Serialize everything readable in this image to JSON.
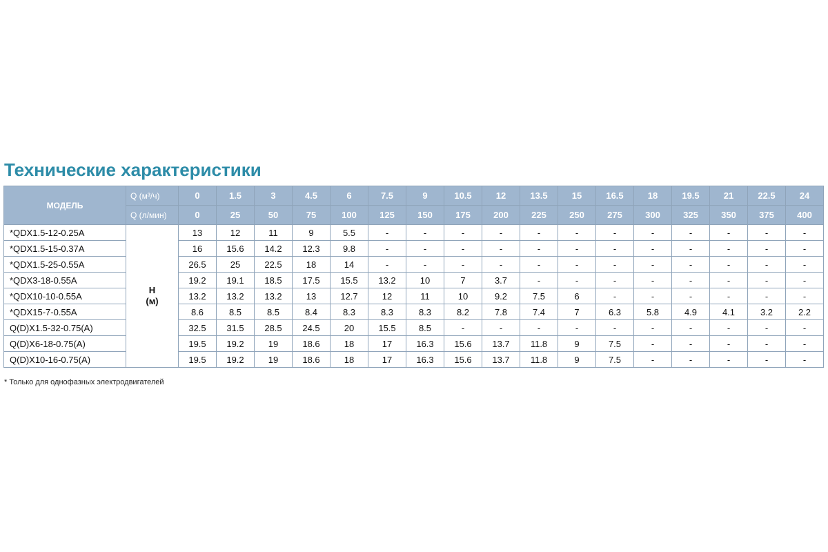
{
  "title": "Технические характеристики",
  "table": {
    "model_header": "МОДЕЛЬ",
    "q_m3_label": "Q (м³/ч)",
    "q_lmin_label": "Q (л/мин)",
    "q_m3_values": [
      "0",
      "1.5",
      "3",
      "4.5",
      "6",
      "7.5",
      "9",
      "10.5",
      "12",
      "13.5",
      "15",
      "16.5",
      "18",
      "19.5",
      "21",
      "22.5",
      "24"
    ],
    "q_lmin_values": [
      "0",
      "25",
      "50",
      "75",
      "100",
      "125",
      "150",
      "175",
      "200",
      "225",
      "250",
      "275",
      "300",
      "325",
      "350",
      "375",
      "400"
    ],
    "h_label_line1": "H",
    "h_label_line2": "(м)",
    "rows": [
      {
        "model": "*QDX1.5-12-0.25A",
        "values": [
          "13",
          "12",
          "11",
          "9",
          "5.5",
          "-",
          "-",
          "-",
          "-",
          "-",
          "-",
          "-",
          "-",
          "-",
          "-",
          "-",
          "-"
        ]
      },
      {
        "model": "*QDX1.5-15-0.37A",
        "values": [
          "16",
          "15.6",
          "14.2",
          "12.3",
          "9.8",
          "-",
          "-",
          "-",
          "-",
          "-",
          "-",
          "-",
          "-",
          "-",
          "-",
          "-",
          "-"
        ]
      },
      {
        "model": "*QDX1.5-25-0.55A",
        "values": [
          "26.5",
          "25",
          "22.5",
          "18",
          "14",
          "-",
          "-",
          "-",
          "-",
          "-",
          "-",
          "-",
          "-",
          "-",
          "-",
          "-",
          "-"
        ]
      },
      {
        "model": "*QDX3-18-0.55A",
        "values": [
          "19.2",
          "19.1",
          "18.5",
          "17.5",
          "15.5",
          "13.2",
          "10",
          "7",
          "3.7",
          "-",
          "-",
          "-",
          "-",
          "-",
          "-",
          "-",
          "-"
        ]
      },
      {
        "model": "*QDX10-10-0.55A",
        "values": [
          "13.2",
          "13.2",
          "13.2",
          "13",
          "12.7",
          "12",
          "11",
          "10",
          "9.2",
          "7.5",
          "6",
          "-",
          "-",
          "-",
          "-",
          "-",
          "-"
        ]
      },
      {
        "model": "*QDX15-7-0.55A",
        "values": [
          "8.6",
          "8.5",
          "8.5",
          "8.4",
          "8.3",
          "8.3",
          "8.3",
          "8.2",
          "7.8",
          "7.4",
          "7",
          "6.3",
          "5.8",
          "4.9",
          "4.1",
          "3.2",
          "2.2"
        ]
      },
      {
        "model": "Q(D)X1.5-32-0.75(A)",
        "values": [
          "32.5",
          "31.5",
          "28.5",
          "24.5",
          "20",
          "15.5",
          "8.5",
          "-",
          "-",
          "-",
          "-",
          "-",
          "-",
          "-",
          "-",
          "-",
          "-"
        ]
      },
      {
        "model": "Q(D)X6-18-0.75(A)",
        "values": [
          "19.5",
          "19.2",
          "19",
          "18.6",
          "18",
          "17",
          "16.3",
          "15.6",
          "13.7",
          "11.8",
          "9",
          "7.5",
          "-",
          "-",
          "-",
          "-",
          "-"
        ]
      },
      {
        "model": "Q(D)X10-16-0.75(A)",
        "values": [
          "19.5",
          "19.2",
          "19",
          "18.6",
          "18",
          "17",
          "16.3",
          "15.6",
          "13.7",
          "11.8",
          "9",
          "7.5",
          "-",
          "-",
          "-",
          "-",
          "-"
        ]
      }
    ]
  },
  "footnote": "* Только для однофазных электродвигателей",
  "colors": {
    "title": "#2d8ca8",
    "header_bg": "#9fb6cf",
    "header_text": "#ffffff",
    "border": "#8fa4ba"
  }
}
